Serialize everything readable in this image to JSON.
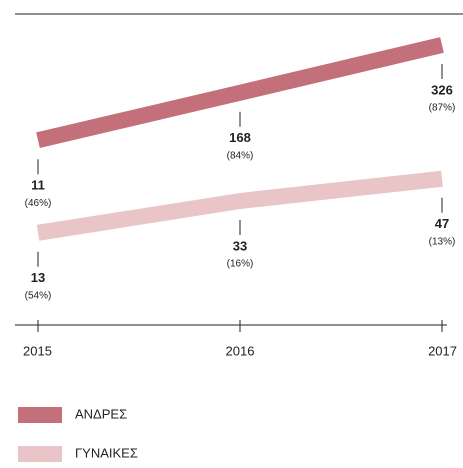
{
  "chart_data": {
    "type": "line",
    "categories": [
      "2015",
      "2016",
      "2017"
    ],
    "series": [
      {
        "name": "ΑΝΔΡΕΣ",
        "color": "#c4707a",
        "values": [
          11,
          168,
          326
        ],
        "percent_labels": [
          "(46%)",
          "(84%)",
          "(87%)"
        ]
      },
      {
        "name": "ΓΥΝΑΙΚΕΣ",
        "color": "#e9c5c7",
        "values": [
          13,
          33,
          47
        ],
        "percent_labels": [
          "(54%)",
          "(16%)",
          "(13%)"
        ],
        "axis": "y2"
      }
    ],
    "ylim": [
      -600,
      425
    ],
    "y2lim": [
      -45,
      150
    ],
    "legend": "bottom-left"
  }
}
